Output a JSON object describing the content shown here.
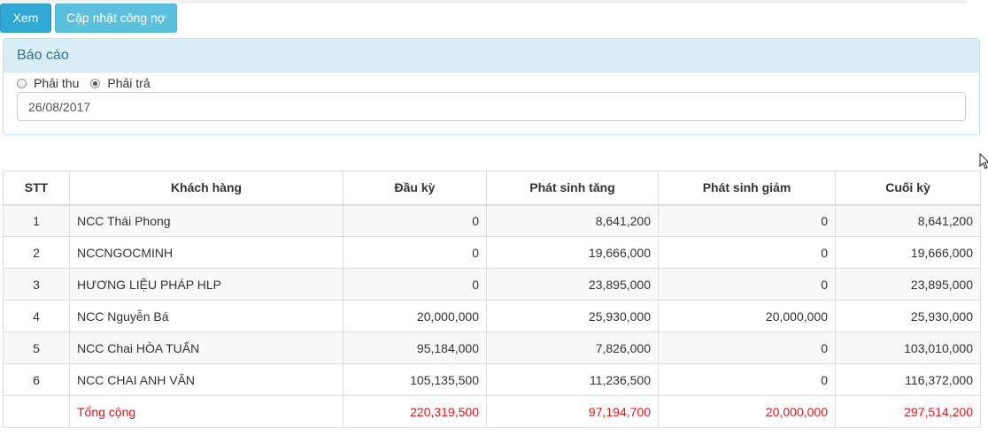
{
  "toolbar": {
    "view_label": "Xem",
    "update_debt_label": "Cập nhật công nợ"
  },
  "report_panel": {
    "title": "Báo cáo",
    "radio_options": [
      {
        "label": "Phải thu",
        "checked": false
      },
      {
        "label": "Phải trả",
        "checked": true
      }
    ],
    "date_value": "26/08/2017"
  },
  "table": {
    "headers": [
      "STT",
      "Khách hàng",
      "Đầu kỳ",
      "Phát sinh tăng",
      "Phát sinh giảm",
      "Cuối kỳ"
    ],
    "rows": [
      [
        "1",
        "NCC Thái Phong",
        "0",
        "8,641,200",
        "0",
        "8,641,200"
      ],
      [
        "2",
        "NCCNGOCMINH",
        "0",
        "19,666,000",
        "0",
        "19,666,000"
      ],
      [
        "3",
        "HƯƠNG LIỆU PHÁP HLP",
        "0",
        "23,895,000",
        "0",
        "23,895,000"
      ],
      [
        "4",
        "NCC Nguyễn Bá",
        "20,000,000",
        "25,930,000",
        "20,000,000",
        "25,930,000"
      ],
      [
        "5",
        "NCC Chai HÒA TUẤN",
        "95,184,000",
        "7,826,000",
        "0",
        "103,010,000"
      ],
      [
        "6",
        "NCC CHAI ANH VĂN",
        "105,135,500",
        "11,236,500",
        "0",
        "116,372,000"
      ]
    ],
    "total": [
      "",
      "Tổng cộng",
      "220,319,500",
      "97,194,700",
      "20,000,000",
      "297,514,200"
    ]
  },
  "colors": {
    "primary_button": "#31a9d6",
    "info_button": "#5bc0de",
    "panel_heading_bg": "#d9edf7",
    "total_text": "#e8151a"
  }
}
